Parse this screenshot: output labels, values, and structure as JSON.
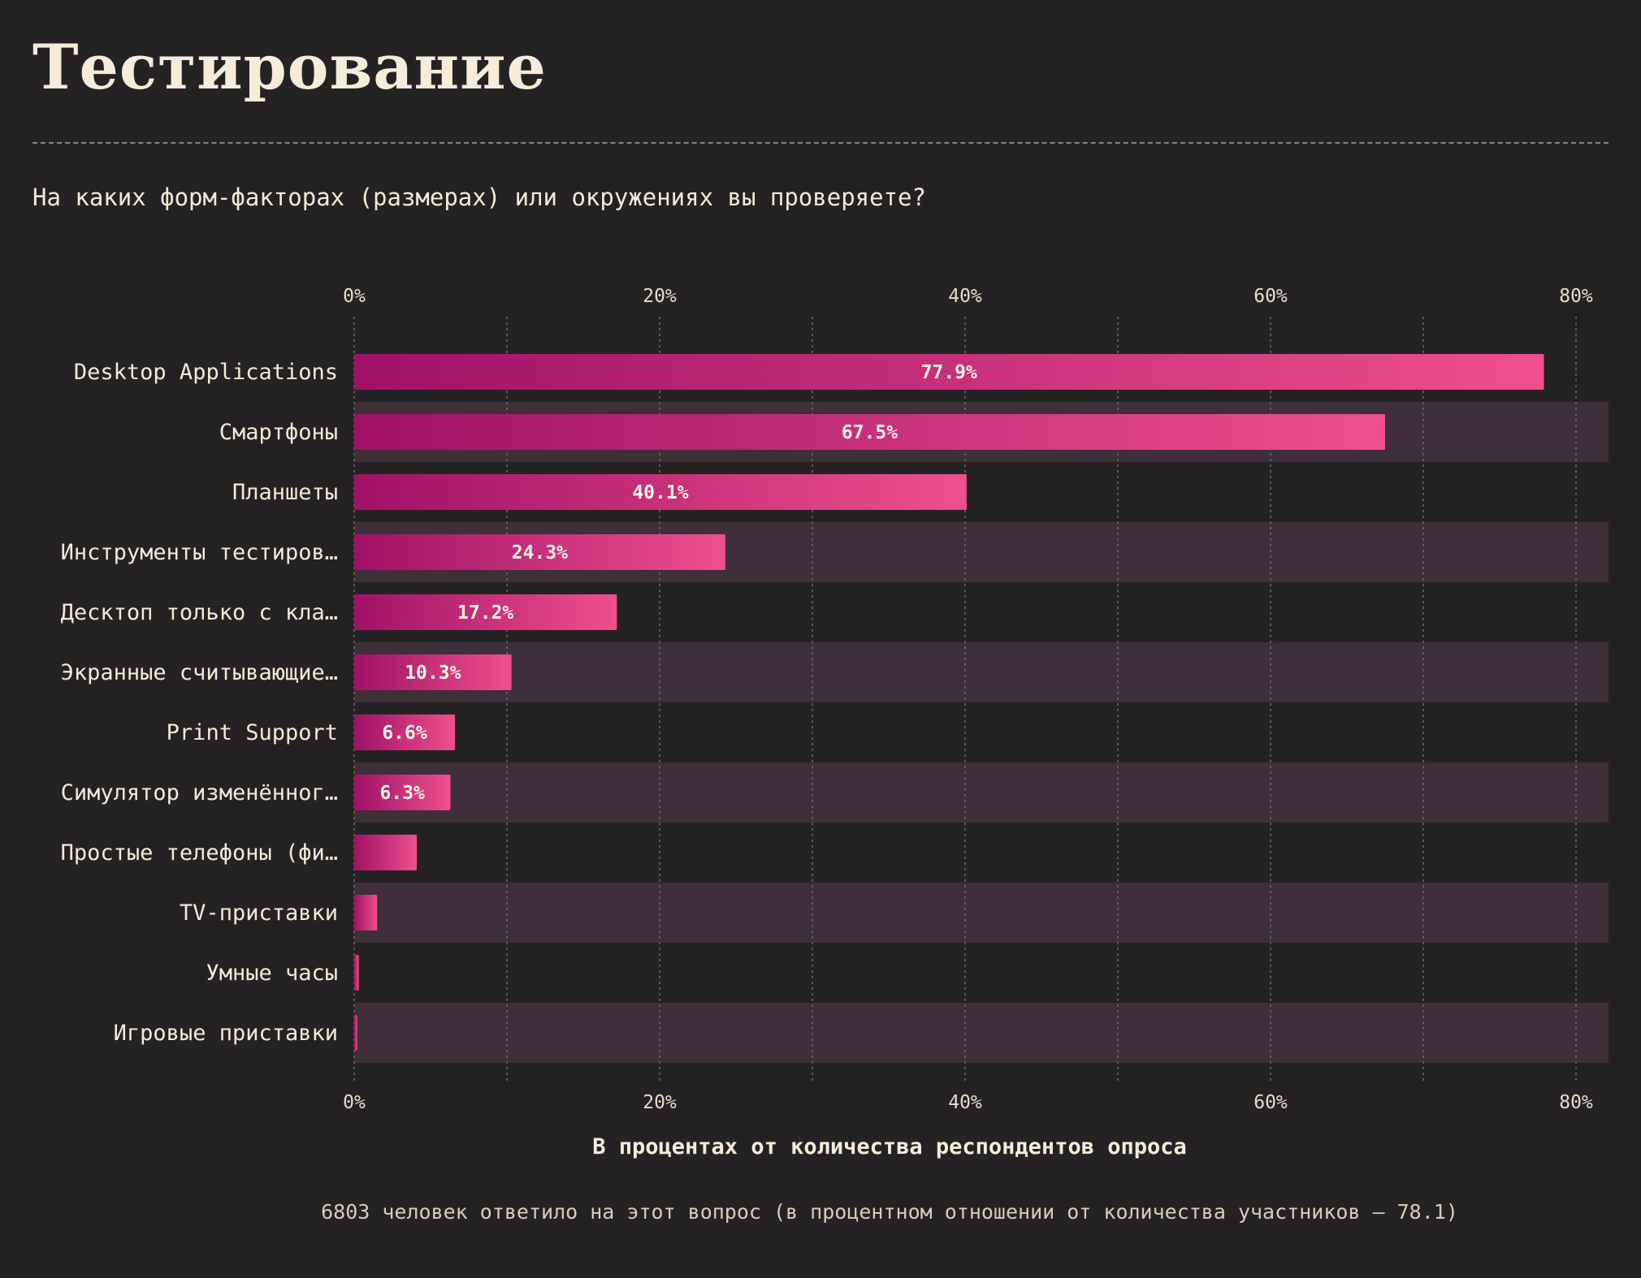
{
  "title": "Тестирование",
  "question": "На каких форм-факторах (размерах) или окружениях вы проверяете?",
  "footnote": "6803 человек ответило на этот вопрос (в процентном отношении от количества участников — 78.1)",
  "colors": {
    "background": "#252224",
    "band": "#3e2f39",
    "bar_start": "#a01166",
    "bar_end": "#ef4f8d",
    "grid": "#6f6a6c"
  },
  "chart_data": {
    "type": "bar",
    "orientation": "horizontal",
    "categories": [
      "Desktop Applications",
      "Смартфоны",
      "Планшеты",
      "Инструменты тестиров…",
      "Десктоп только с кла…",
      "Экранные считывающие…",
      "Print Support",
      "Симулятор изменённог…",
      "Простые телефоны (фи…",
      "TV-приставки",
      "Умные часы",
      "Игровые приставки"
    ],
    "values": [
      77.9,
      67.5,
      40.1,
      24.3,
      17.2,
      10.3,
      6.6,
      6.3,
      4.1,
      1.5,
      0.3,
      0.2
    ],
    "value_labels": [
      "77.9%",
      "67.5%",
      "40.1%",
      "24.3%",
      "17.2%",
      "10.3%",
      "6.6%",
      "6.3%",
      "",
      "",
      "",
      ""
    ],
    "xlabel": "В процентах от количества респондентов опроса",
    "xlim": [
      0,
      82
    ],
    "xticks": [
      0,
      20,
      40,
      60,
      80
    ],
    "xtick_labels": [
      "0%",
      "20%",
      "40%",
      "60%",
      "80%"
    ],
    "minor_gridlines": [
      10,
      30,
      50,
      70
    ],
    "grid": true,
    "axis_labels_position": "top and bottom",
    "alternating_row_bands": true
  }
}
